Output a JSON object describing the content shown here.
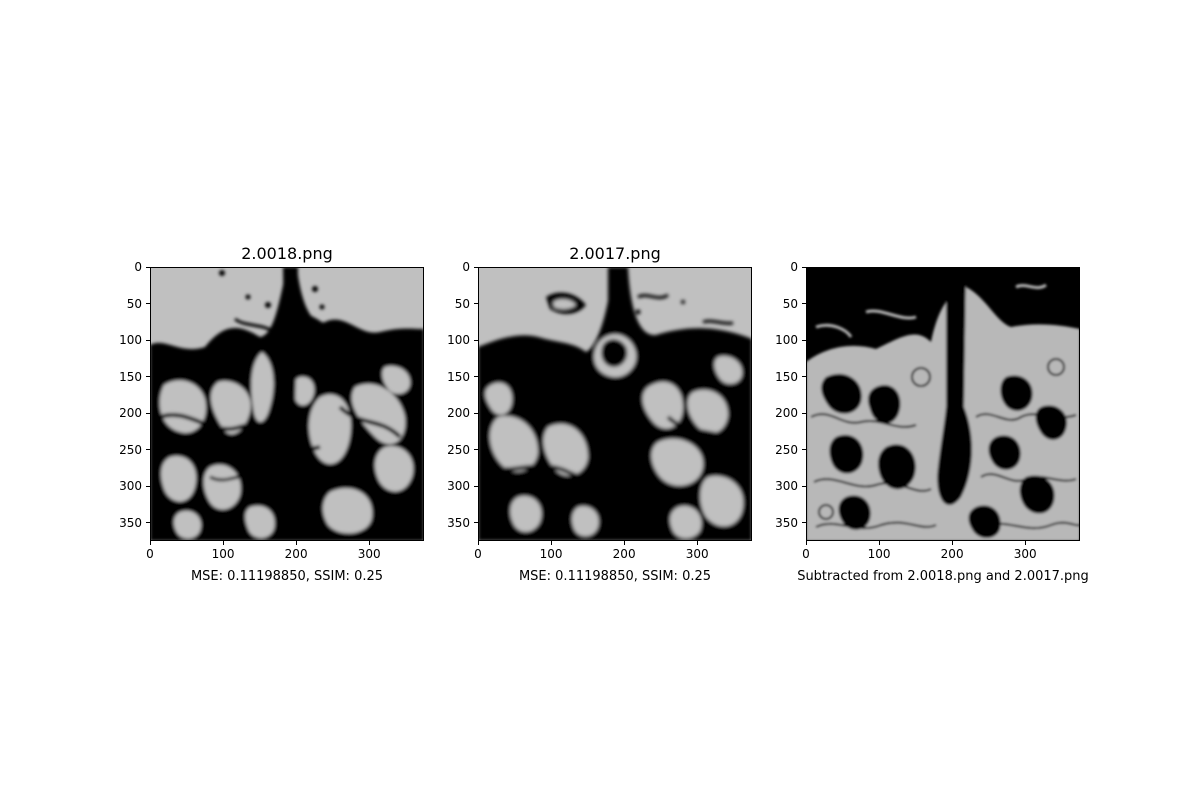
{
  "chart_data": [
    {
      "type": "image",
      "title": "2.0018.png",
      "xlabel": "MSE: 0.11198850, SSIM: 0.25",
      "xticks": [
        "0",
        "100",
        "200",
        "300"
      ],
      "yticks": [
        "0",
        "50",
        "100",
        "150",
        "200",
        "250",
        "300",
        "350"
      ],
      "xlim": [
        0,
        375
      ],
      "ylim": [
        375,
        0
      ],
      "colormap": "gray",
      "background_color": "#c0c0c0",
      "ink_color": "#000000"
    },
    {
      "type": "image",
      "title": "2.0017.png",
      "xlabel": "MSE: 0.11198850, SSIM: 0.25",
      "xticks": [
        "0",
        "100",
        "200",
        "300"
      ],
      "yticks": [
        "0",
        "50",
        "100",
        "150",
        "200",
        "250",
        "300",
        "350"
      ],
      "xlim": [
        0,
        375
      ],
      "ylim": [
        375,
        0
      ],
      "colormap": "gray",
      "background_color": "#c0c0c0",
      "ink_color": "#000000"
    },
    {
      "type": "image",
      "title": "",
      "xlabel": "Subtracted from 2.0018.png and 2.0017.png",
      "xticks": [
        "0",
        "100",
        "200",
        "300"
      ],
      "yticks": [
        "0",
        "50",
        "100",
        "150",
        "200",
        "250",
        "300",
        "350"
      ],
      "xlim": [
        0,
        375
      ],
      "ylim": [
        375,
        0
      ],
      "colormap": "gray",
      "background_color": "#000000",
      "ink_color": "#c0c0c0"
    }
  ]
}
